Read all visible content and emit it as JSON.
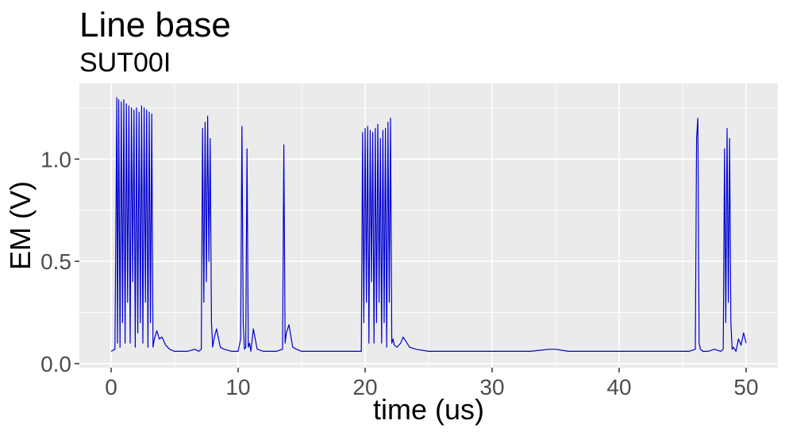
{
  "chart_data": {
    "type": "line",
    "title": "Line base",
    "subtitle": "SUT00I",
    "xlabel": "time (us)",
    "ylabel": "EM (V)",
    "xlim": [
      -2.5,
      52.5
    ],
    "ylim": [
      -0.02,
      1.37
    ],
    "xticks": [
      0,
      10,
      20,
      30,
      40,
      50
    ],
    "yticks": [
      0.0,
      0.5,
      1.0
    ],
    "xtick_labels": [
      "0",
      "10",
      "20",
      "30",
      "40",
      "50"
    ],
    "ytick_labels": [
      "0.0",
      "0.5",
      "1.0"
    ],
    "grid": true,
    "colors": {
      "line": "#0000CD",
      "panel": "#EBEBEB",
      "grid": "#FFFFFF"
    },
    "series": [
      {
        "x": [
          0,
          0.3,
          0.45,
          0.5,
          0.6,
          0.7,
          0.8,
          0.9,
          1.0,
          1.1,
          1.2,
          1.3,
          1.4,
          1.5,
          1.6,
          1.7,
          1.8,
          1.9,
          2.0,
          2.1,
          2.2,
          2.3,
          2.4,
          2.5,
          2.6,
          2.7,
          2.8,
          2.9,
          3.0,
          3.1,
          3.2,
          3.3,
          3.4,
          3.6,
          3.8,
          4.0,
          4.3,
          4.6,
          5.0,
          6.0,
          6.6,
          6.9,
          7.1,
          7.2,
          7.3,
          7.4,
          7.5,
          7.6,
          7.7,
          7.8,
          7.9,
          8.0,
          8.1,
          8.3,
          8.6,
          8.9,
          9.5,
          10.0,
          10.2,
          10.3,
          10.4,
          10.5,
          10.6,
          10.7,
          10.8,
          10.9,
          11.0,
          11.2,
          11.5,
          12.0,
          13.0,
          13.5,
          13.6,
          13.7,
          13.8,
          14.0,
          14.3,
          14.6,
          15.0,
          16.0,
          17.0,
          18.0,
          19.0,
          19.7,
          19.8,
          19.9,
          20.0,
          20.1,
          20.2,
          20.3,
          20.4,
          20.5,
          20.6,
          20.7,
          20.8,
          20.9,
          21.0,
          21.1,
          21.2,
          21.3,
          21.4,
          21.5,
          21.6,
          21.7,
          21.8,
          21.9,
          22.0,
          22.1,
          22.2,
          22.3,
          22.5,
          22.8,
          23.0,
          23.5,
          24.0,
          25.0,
          27.0,
          30.0,
          33.0,
          34.5,
          35.0,
          36.0,
          38.0,
          40.0,
          42.0,
          44.0,
          45.5,
          46.0,
          46.1,
          46.2,
          46.3,
          46.4,
          46.6,
          47.0,
          47.5,
          48.0,
          48.2,
          48.3,
          48.4,
          48.5,
          48.6,
          48.7,
          48.8,
          48.9,
          49.0,
          49.2,
          49.4,
          49.6,
          49.8,
          50.0
        ],
        "y": [
          0.06,
          0.07,
          1.3,
          0.1,
          1.29,
          0.08,
          1.28,
          0.2,
          1.29,
          0.1,
          1.27,
          0.3,
          1.26,
          0.1,
          1.25,
          0.4,
          1.24,
          0.08,
          1.25,
          0.15,
          1.23,
          0.2,
          1.26,
          0.1,
          1.25,
          0.3,
          1.24,
          0.08,
          1.23,
          0.2,
          1.22,
          0.08,
          0.12,
          0.16,
          0.12,
          0.13,
          0.09,
          0.07,
          0.06,
          0.06,
          0.07,
          0.06,
          0.07,
          1.15,
          0.3,
          1.18,
          0.4,
          1.21,
          0.5,
          1.1,
          0.2,
          0.08,
          0.12,
          0.17,
          0.08,
          0.07,
          0.06,
          0.06,
          0.12,
          1.16,
          0.2,
          0.07,
          0.08,
          1.05,
          0.08,
          0.1,
          0.06,
          0.17,
          0.07,
          0.06,
          0.06,
          0.07,
          1.07,
          0.1,
          0.15,
          0.19,
          0.08,
          0.07,
          0.06,
          0.06,
          0.06,
          0.06,
          0.06,
          0.06,
          1.13,
          0.2,
          1.15,
          0.3,
          1.16,
          0.1,
          1.14,
          0.4,
          1.13,
          0.1,
          1.15,
          0.2,
          1.17,
          0.3,
          1.1,
          0.1,
          1.14,
          0.2,
          1.15,
          0.08,
          1.18,
          0.3,
          1.2,
          0.1,
          0.12,
          0.09,
          0.08,
          0.1,
          0.13,
          0.08,
          0.07,
          0.06,
          0.06,
          0.06,
          0.06,
          0.07,
          0.07,
          0.06,
          0.06,
          0.06,
          0.06,
          0.06,
          0.06,
          0.07,
          1.1,
          1.2,
          0.1,
          0.07,
          0.06,
          0.06,
          0.07,
          0.06,
          0.07,
          1.05,
          0.2,
          1.15,
          0.3,
          1.1,
          0.2,
          0.07,
          0.08,
          0.06,
          0.12,
          0.09,
          0.15,
          0.1
        ]
      }
    ]
  }
}
